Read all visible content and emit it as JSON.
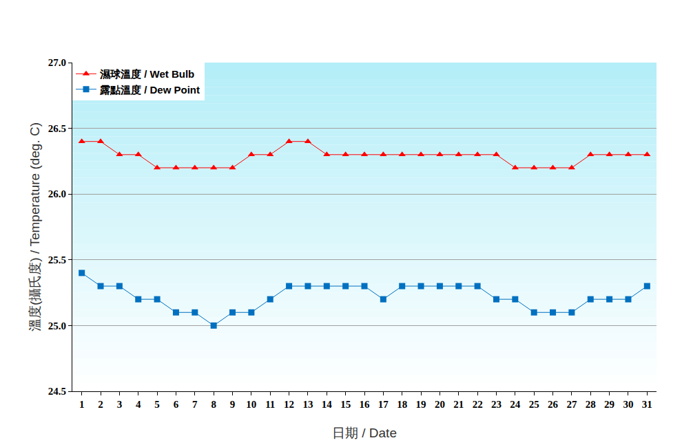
{
  "chart_data": {
    "type": "line",
    "x_label": "日期 / Date",
    "y_label": "溫度(攝氏度) / Temperature (deg. C)",
    "categories": [
      "1",
      "2",
      "3",
      "4",
      "5",
      "6",
      "7",
      "8",
      "9",
      "10",
      "11",
      "12",
      "13",
      "14",
      "15",
      "16",
      "17",
      "18",
      "19",
      "20",
      "21",
      "22",
      "23",
      "24",
      "25",
      "26",
      "27",
      "28",
      "29",
      "30",
      "31"
    ],
    "series": [
      {
        "name": "濕球溫度 / Wet Bulb",
        "color": "#ff0000",
        "marker": "triangle-up",
        "line_style": "solid",
        "values": [
          26.4,
          26.4,
          26.3,
          26.3,
          26.2,
          26.2,
          26.2,
          26.2,
          26.2,
          26.3,
          26.3,
          26.4,
          26.4,
          26.3,
          26.3,
          26.3,
          26.3,
          26.3,
          26.3,
          26.3,
          26.3,
          26.3,
          26.3,
          26.2,
          26.2,
          26.2,
          26.2,
          26.3,
          26.3,
          26.3,
          26.3
        ]
      },
      {
        "name": "露點溫度 / Dew Point",
        "color": "#0070c0",
        "marker": "square",
        "line_style": "solid",
        "values": [
          25.4,
          25.3,
          25.3,
          25.2,
          25.2,
          25.1,
          25.1,
          25.0,
          25.1,
          25.1,
          25.2,
          25.3,
          25.3,
          25.3,
          25.3,
          25.3,
          25.2,
          25.3,
          25.3,
          25.3,
          25.3,
          25.3,
          25.2,
          25.2,
          25.1,
          25.1,
          25.1,
          25.2,
          25.2,
          25.2,
          25.3
        ]
      }
    ],
    "ylim": [
      24.5,
      27.0
    ],
    "yticks": [
      24.5,
      {
        "value": 25,
        "label": "25.0"
      },
      25.5,
      {
        "value": 26,
        "label": "26.0"
      },
      26.5,
      {
        "value": 27,
        "label": "27.0"
      }
    ],
    "grid": true,
    "legend": "upper left"
  }
}
